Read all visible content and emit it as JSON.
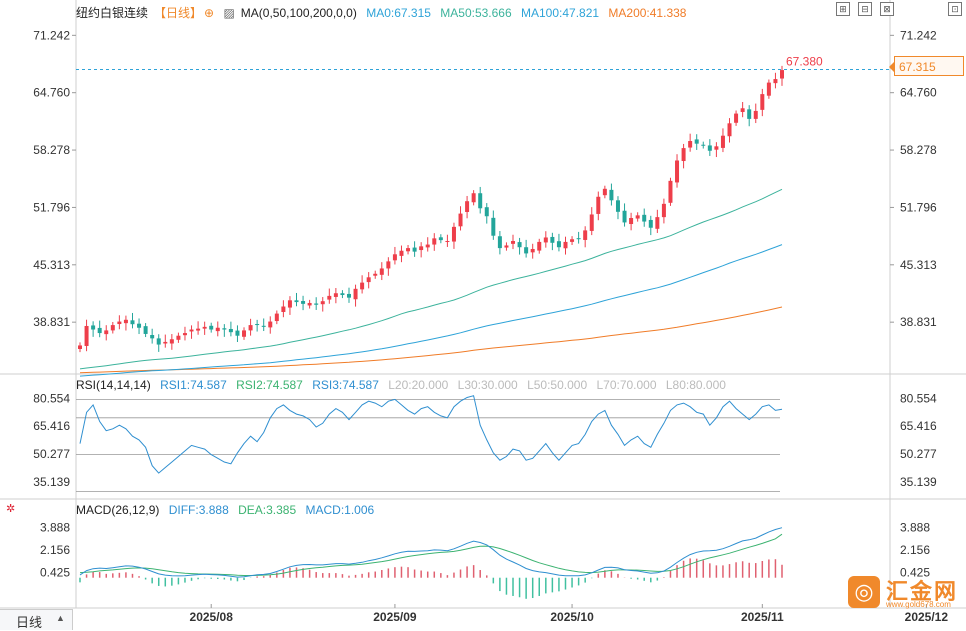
{
  "header": {
    "title": "纽约白银连续",
    "period_tag": "【日线】",
    "ma_label": "MA(0,50,100,200,0,0)",
    "ma0": "MA0:67.315",
    "ma50": "MA50:53.666",
    "ma100": "MA100:47.821",
    "ma200": "MA200:41.338"
  },
  "rsi_header": {
    "label": "RSI(14,14,14)",
    "rsi1": "RSI1:74.587",
    "rsi2": "RSI2:74.587",
    "rsi3": "RSI3:74.587",
    "l20": "L20:20.000",
    "l30": "L30:30.000",
    "l50": "L50:50.000",
    "l70": "L70:70.000",
    "l80": "L80:80.000"
  },
  "macd_header": {
    "label": "MACD(26,12,9)",
    "diff": "DIFF:3.888",
    "dea": "DEA:3.385",
    "macd": "MACD:1.006"
  },
  "timeframe": {
    "label": "日线",
    "arrow": "▲"
  },
  "price_tag": "67.315",
  "high_marker": "67.380",
  "watermark": {
    "name": "汇金网",
    "url": "www.gold678.com",
    "logo": "◎"
  },
  "toolbar": [
    "⊞",
    "⊟",
    "⊠",
    "⊡"
  ],
  "colors": {
    "up": "#ee3e4a",
    "down": "#22a59a",
    "ma50": "#3cb39c",
    "ma100": "#2ea3d8",
    "ma200": "#f07c28",
    "rsi": "#2f8fd0",
    "diff": "#2f8fd0",
    "dea": "#3cb371",
    "macd_pos": "#e06070",
    "macd_neg": "#40c0a0",
    "accent": "#f0892b",
    "title_tag": "#f0892b"
  },
  "chart_data": {
    "type": "candlestick",
    "price_axis_ticks": [
      "71.242",
      "64.760",
      "58.278",
      "51.796",
      "45.313",
      "38.831"
    ],
    "price_ticks_values": [
      71.242,
      64.76,
      58.278,
      51.796,
      45.313,
      38.831
    ],
    "price_range": [
      33.2,
      73.2
    ],
    "rsi_axis_ticks": [
      "80.554",
      "65.416",
      "50.277",
      "35.139"
    ],
    "rsi_ticks_values": [
      80.554,
      65.416,
      50.277,
      35.139
    ],
    "rsi_range": [
      27.0,
      84.0
    ],
    "macd_axis_ticks": [
      "3.888",
      "2.156",
      "0.425"
    ],
    "macd_ticks_values": [
      3.888,
      2.156,
      0.425
    ],
    "macd_range": [
      -2.2,
      4.8
    ],
    "time_labels": [
      "2025/08",
      "2025/09",
      "2025/10",
      "2025/11",
      "2025/12"
    ],
    "time_label_index": [
      20,
      48,
      75,
      104,
      129
    ],
    "last_close": 67.315,
    "high": 67.38,
    "closes": [
      36.2,
      38.4,
      38.0,
      37.6,
      37.9,
      38.5,
      38.9,
      39.1,
      38.6,
      38.2,
      37.5,
      37.0,
      36.3,
      36.6,
      36.9,
      37.3,
      37.6,
      38.0,
      38.1,
      38.3,
      38.0,
      38.2,
      38.0,
      37.7,
      37.3,
      37.9,
      38.5,
      38.6,
      38.3,
      38.9,
      39.8,
      40.6,
      41.3,
      41.1,
      40.9,
      41.0,
      40.8,
      41.2,
      41.8,
      42.1,
      41.9,
      41.6,
      42.6,
      43.3,
      43.9,
      44.3,
      44.9,
      45.7,
      46.5,
      46.9,
      47.2,
      46.8,
      47.4,
      47.6,
      48.3,
      48.1,
      48.0,
      49.6,
      51.1,
      52.5,
      53.4,
      51.7,
      50.8,
      48.6,
      47.2,
      47.5,
      48.0,
      47.3,
      46.6,
      47.1,
      47.9,
      48.4,
      47.8,
      47.3,
      47.9,
      48.2,
      48.3,
      49.2,
      51.0,
      53.0,
      53.9,
      52.6,
      51.3,
      50.1,
      50.6,
      50.9,
      50.2,
      49.5,
      50.7,
      52.2,
      54.8,
      57.1,
      58.5,
      59.3,
      59.0,
      58.8,
      58.2,
      58.7,
      59.9,
      61.3,
      62.4,
      63.0,
      61.8,
      62.7,
      64.6,
      65.9,
      66.3,
      67.315
    ],
    "rsi_values": [
      56,
      73,
      77,
      68,
      63,
      64,
      66,
      64,
      60,
      58,
      54,
      44,
      40,
      43,
      46,
      49,
      52,
      55,
      54,
      53,
      50,
      48,
      46,
      45,
      51,
      56,
      60,
      57,
      62,
      70,
      75,
      77,
      74,
      72,
      71,
      69,
      65,
      67,
      72,
      75,
      73,
      69,
      73,
      77,
      79,
      78,
      76,
      79,
      80,
      77,
      74,
      72,
      75,
      76,
      73,
      71,
      70,
      76,
      79,
      81,
      82,
      66,
      58,
      51,
      47,
      49,
      53,
      52,
      47,
      48,
      52,
      56,
      51,
      47,
      51,
      55,
      56,
      61,
      68,
      72,
      74,
      66,
      61,
      55,
      58,
      60,
      56,
      54,
      61,
      67,
      74,
      77,
      78,
      76,
      73,
      72,
      66,
      70,
      76,
      79,
      75,
      72,
      69,
      72,
      76,
      77,
      74,
      74.587
    ],
    "diff_values": [
      0.22,
      0.55,
      0.7,
      0.75,
      0.72,
      0.78,
      0.85,
      0.92,
      0.9,
      0.82,
      0.68,
      0.48,
      0.3,
      0.2,
      0.15,
      0.14,
      0.16,
      0.2,
      0.24,
      0.27,
      0.24,
      0.22,
      0.18,
      0.12,
      0.05,
      0.08,
      0.16,
      0.23,
      0.26,
      0.33,
      0.48,
      0.66,
      0.85,
      0.96,
      1.02,
      1.03,
      1.0,
      1.0,
      1.05,
      1.1,
      1.1,
      1.06,
      1.12,
      1.2,
      1.32,
      1.42,
      1.55,
      1.7,
      1.86,
      1.98,
      2.06,
      2.05,
      2.08,
      2.1,
      2.16,
      2.15,
      2.1,
      2.25,
      2.45,
      2.68,
      2.85,
      2.74,
      2.55,
      2.18,
      1.75,
      1.45,
      1.22,
      0.98,
      0.72,
      0.55,
      0.45,
      0.4,
      0.3,
      0.2,
      0.16,
      0.15,
      0.15,
      0.22,
      0.38,
      0.6,
      0.8,
      0.82,
      0.76,
      0.62,
      0.56,
      0.52,
      0.44,
      0.34,
      0.38,
      0.52,
      0.82,
      1.18,
      1.52,
      1.8,
      1.98,
      2.08,
      2.1,
      2.14,
      2.26,
      2.44,
      2.66,
      2.86,
      2.95,
      3.08,
      3.32,
      3.56,
      3.75,
      3.888
    ],
    "dea_values": [
      0.4,
      0.42,
      0.47,
      0.53,
      0.57,
      0.61,
      0.66,
      0.71,
      0.75,
      0.76,
      0.75,
      0.7,
      0.62,
      0.54,
      0.46,
      0.4,
      0.35,
      0.32,
      0.3,
      0.29,
      0.28,
      0.27,
      0.25,
      0.23,
      0.19,
      0.17,
      0.17,
      0.18,
      0.2,
      0.23,
      0.28,
      0.36,
      0.46,
      0.56,
      0.65,
      0.72,
      0.78,
      0.82,
      0.87,
      0.92,
      0.96,
      0.98,
      1.01,
      1.05,
      1.11,
      1.18,
      1.25,
      1.34,
      1.45,
      1.55,
      1.65,
      1.73,
      1.8,
      1.86,
      1.92,
      1.97,
      2.0,
      2.05,
      2.13,
      2.24,
      2.36,
      2.44,
      2.46,
      2.4,
      2.27,
      2.11,
      1.93,
      1.74,
      1.54,
      1.34,
      1.16,
      1.01,
      0.87,
      0.73,
      0.62,
      0.53,
      0.45,
      0.41,
      0.4,
      0.44,
      0.51,
      0.57,
      0.61,
      0.61,
      0.6,
      0.59,
      0.56,
      0.52,
      0.49,
      0.5,
      0.56,
      0.69,
      0.86,
      1.05,
      1.24,
      1.4,
      1.54,
      1.66,
      1.78,
      1.91,
      2.06,
      2.22,
      2.37,
      2.51,
      2.67,
      2.85,
      3.03,
      3.385
    ]
  }
}
